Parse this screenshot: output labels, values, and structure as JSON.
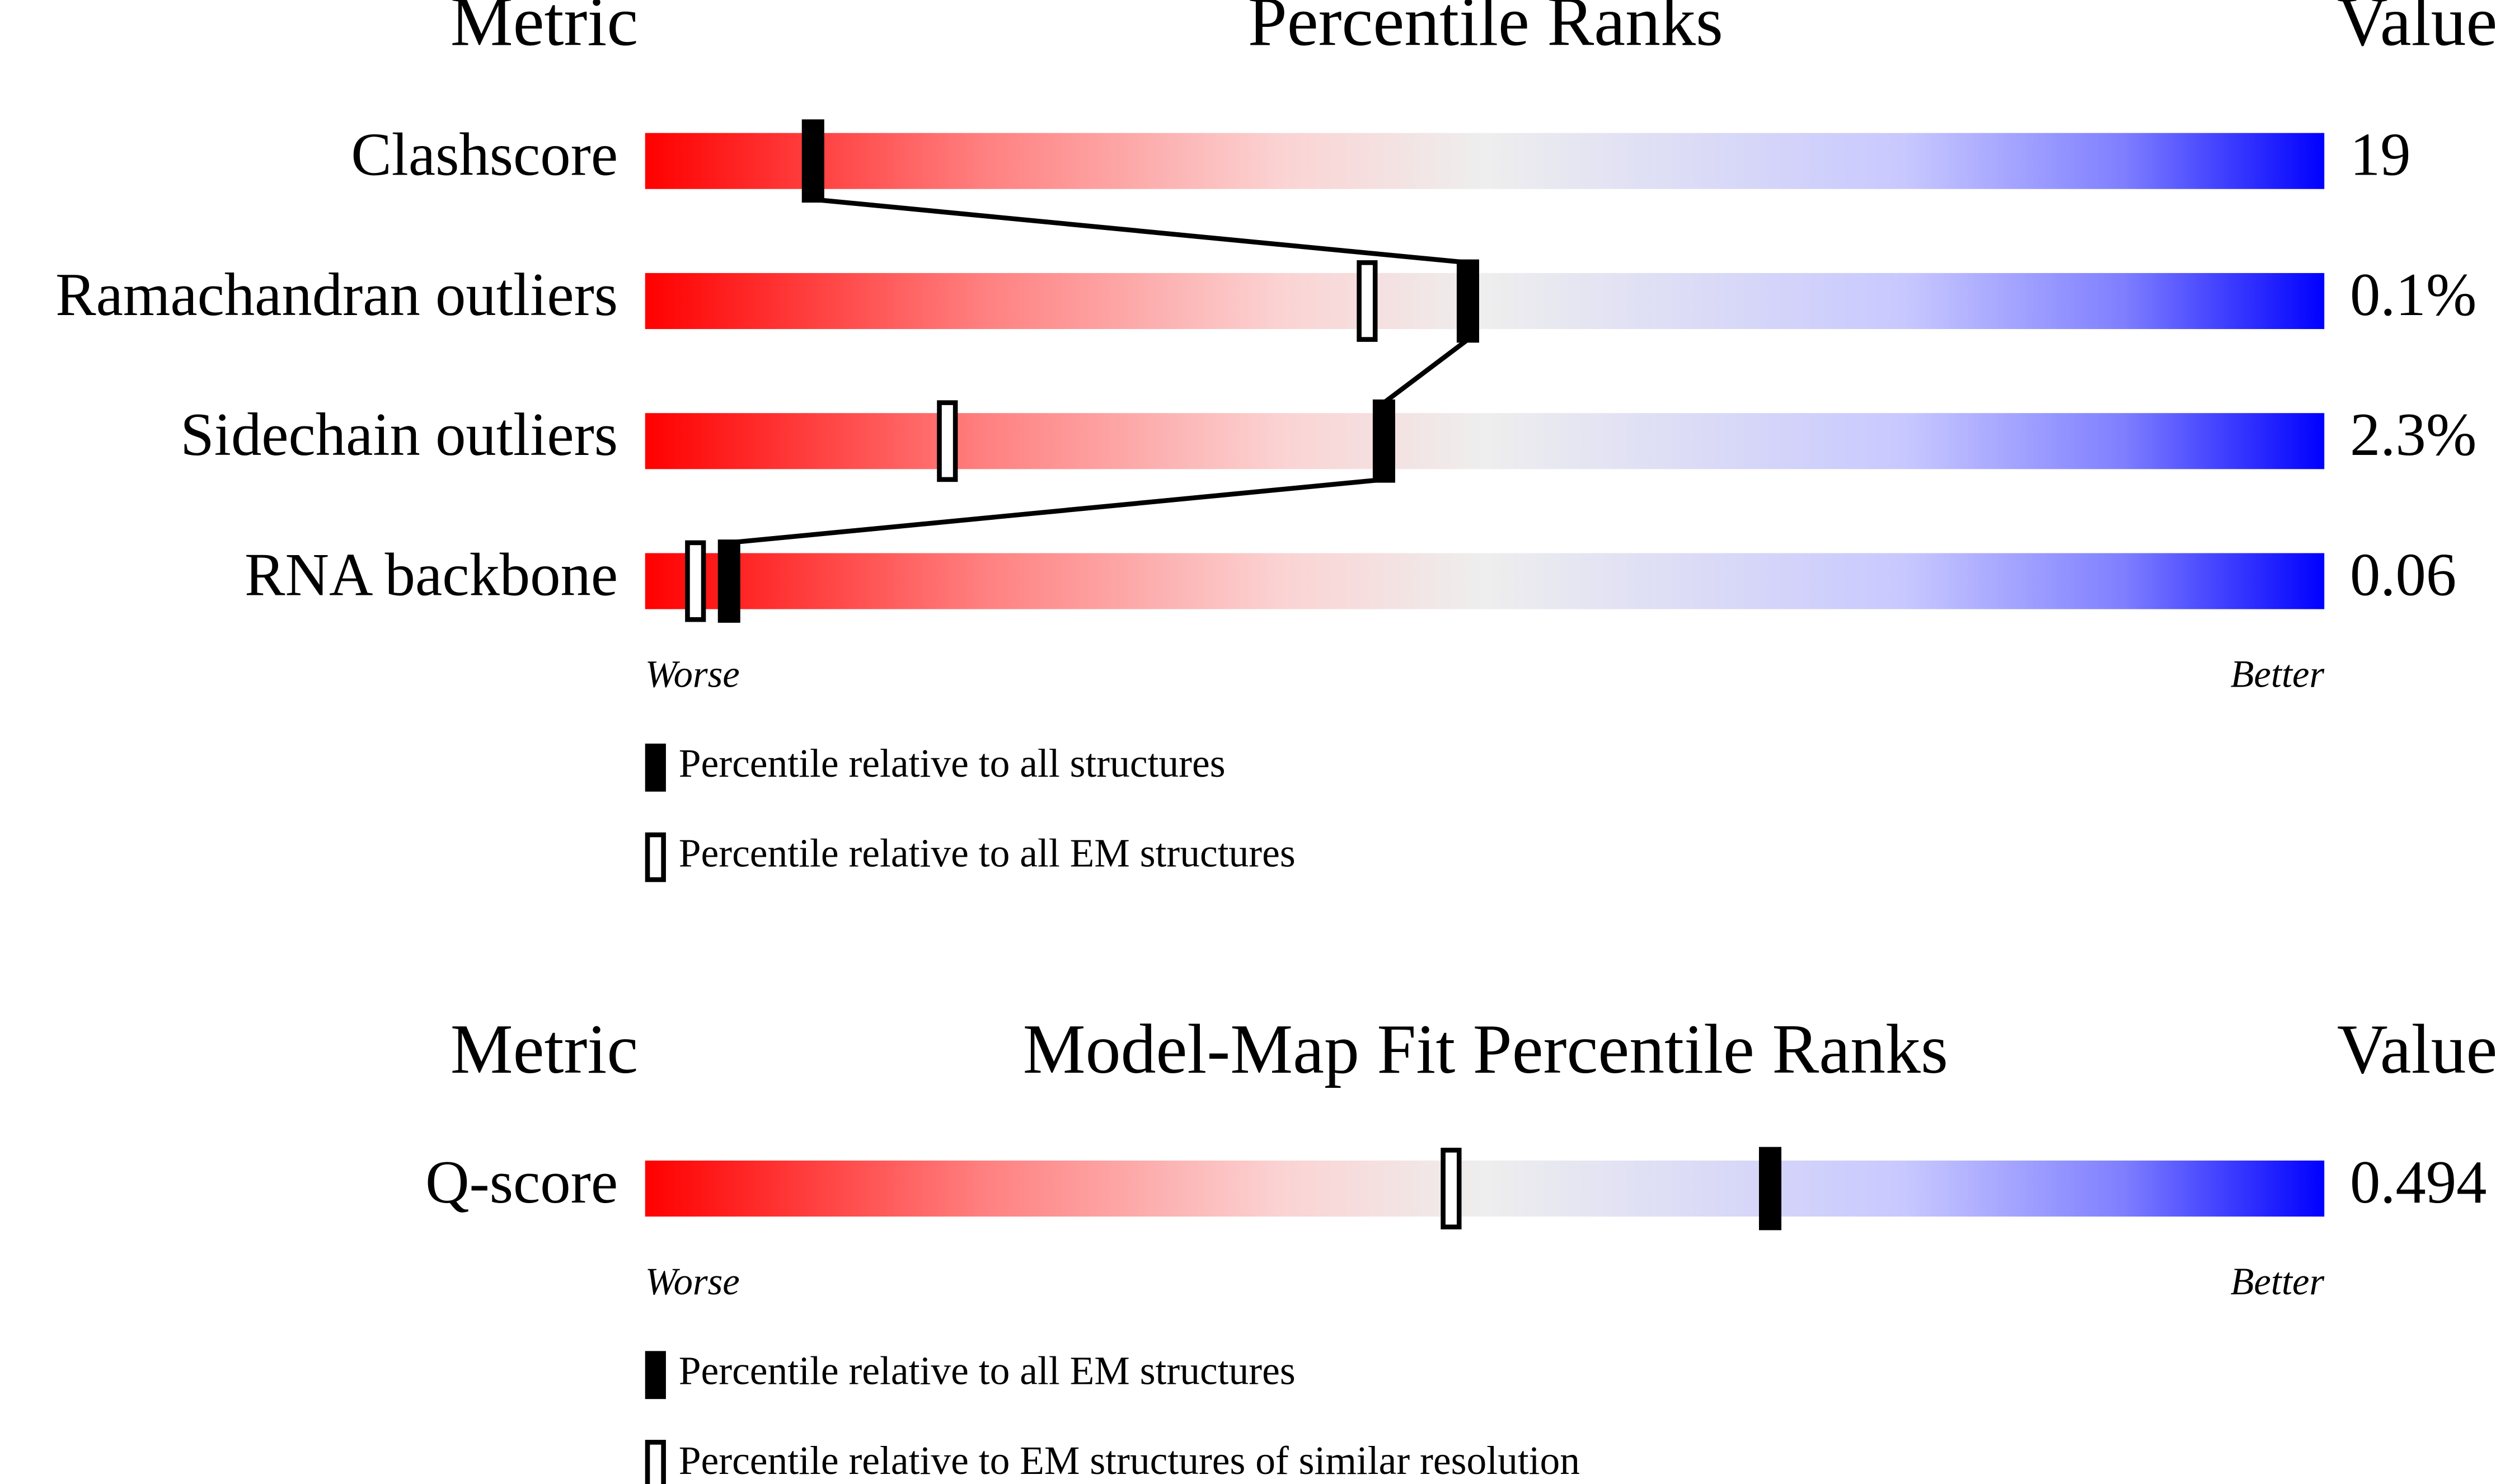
{
  "chart_data": [
    {
      "type": "slider",
      "title": "Percentile Ranks",
      "metric_header": "Metric",
      "value_header": "Value",
      "categories": [
        "Clashscore",
        "Ramachandran outliers",
        "Sidechain outliers",
        "RNA backbone"
      ],
      "metric_values": [
        "19",
        "0.1%",
        "2.3%",
        "0.06"
      ],
      "series": [
        {
          "name": "Percentile relative to all structures",
          "color": "#000000",
          "values": [
            10,
            49,
            44,
            5
          ]
        },
        {
          "name": "Percentile relative to all EM structures",
          "color": "#000000",
          "values": [
            10,
            43,
            18,
            3
          ]
        }
      ],
      "xlim": [
        0,
        100
      ],
      "low_label": "Worse",
      "high_label": "Better"
    },
    {
      "type": "slider",
      "title": "Model-Map Fit Percentile Ranks",
      "metric_header": "Metric",
      "value_header": "Value",
      "categories": [
        "Q-score"
      ],
      "metric_values": [
        "0.494"
      ],
      "series": [
        {
          "name": "Percentile relative to all EM structures",
          "color": "#000000",
          "values": [
            67
          ]
        },
        {
          "name": "Percentile relative to EM structures of similar resolution",
          "color": "#000000",
          "values": [
            48
          ]
        }
      ],
      "xlim": [
        0,
        100
      ],
      "low_label": "Worse",
      "high_label": "Better"
    }
  ]
}
